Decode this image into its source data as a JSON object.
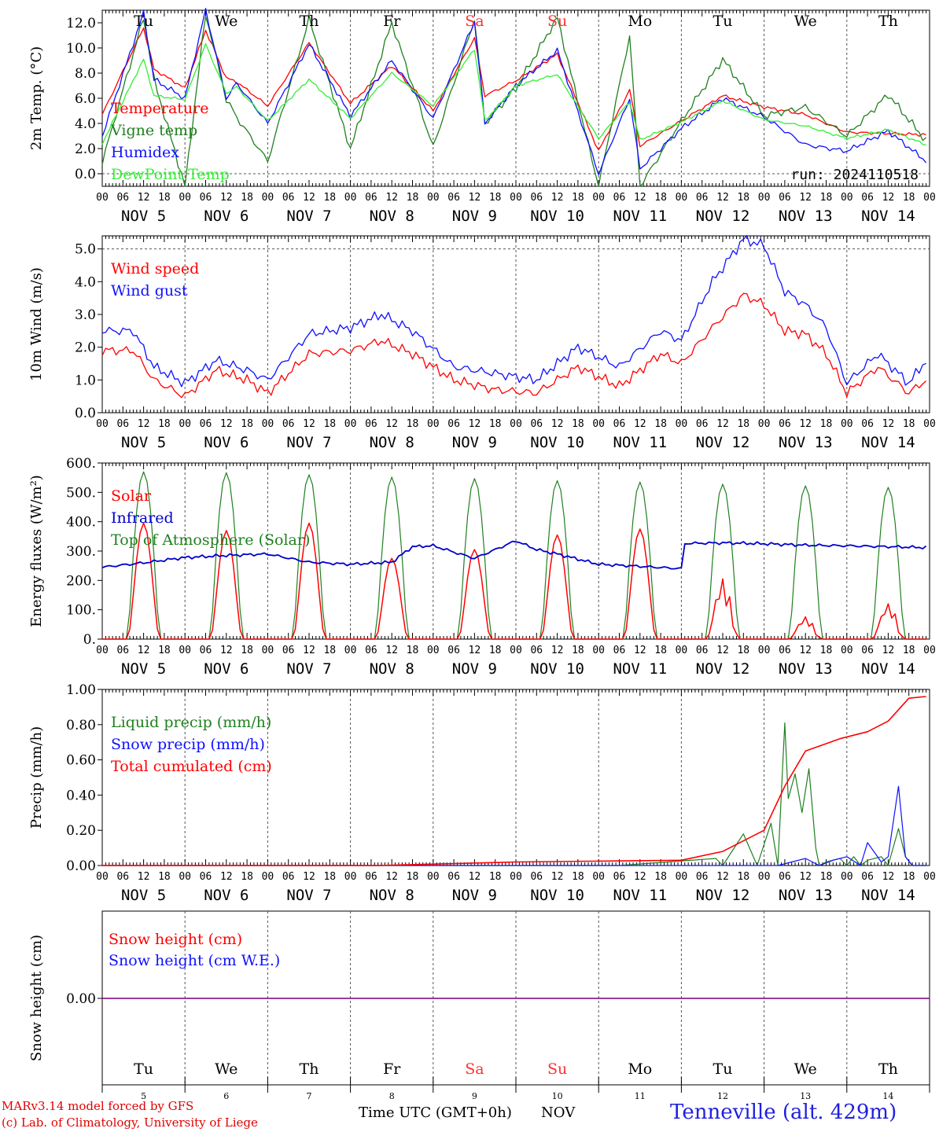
{
  "footer": {
    "model_line": "MARv3.14 model forced by GFS",
    "credit_line": "(c) Lab. of Climatology, University of Liege",
    "xlabel": "Time UTC (GMT+0h)",
    "month": "NOV",
    "station": "Tenneville (alt. 429m)"
  },
  "chart_data": [
    {
      "type": "line",
      "ylabel": "2m Temp. (°C)",
      "ylim": [
        -1.0,
        13.0
      ],
      "yticks": [
        0.0,
        2.0,
        4.0,
        6.0,
        8.0,
        10.0,
        12.0
      ],
      "ytick_labels": [
        "0.0",
        "2.0",
        "4.0",
        "6.0",
        "8.0",
        "10.0",
        "12.0"
      ],
      "reference_line": 0,
      "day_names": [
        "Tu",
        "We",
        "Th",
        "Fr",
        "Sa",
        "Su",
        "Mo",
        "Tu",
        "We",
        "Th"
      ],
      "weekend_color": "#ff3030",
      "annotation": "run: 2024110518",
      "legend": [
        "Temperature",
        "Vigne temp",
        "Humidex",
        "DewPoint Temp"
      ],
      "x_hours": [
        0,
        12,
        15,
        24,
        30,
        36,
        39,
        48,
        60,
        72,
        84,
        96,
        108,
        111,
        120,
        132,
        144,
        153,
        156,
        168,
        180,
        192,
        204,
        216,
        228,
        239
      ],
      "series": [
        {
          "name": "Temperature",
          "color": "#ff0000",
          "values": [
            4.7,
            11.6,
            8.3,
            6.8,
            11.4,
            7.6,
            7.3,
            5.4,
            10.4,
            5.6,
            8.6,
            5.0,
            10.8,
            6.2,
            7.4,
            9.5,
            1.8,
            6.7,
            2.2,
            4.2,
            6.2,
            5.3,
            4.7,
            3.3,
            3.2,
            3.1
          ]
        },
        {
          "name": "Vigne temp",
          "color": "#208020",
          "values": [
            0.9,
            12.4,
            7.5,
            -1.0,
            12.7,
            5.9,
            4.5,
            1.0,
            12.3,
            2.0,
            12.0,
            2.1,
            12.3,
            4.0,
            6.8,
            12.4,
            -1.0,
            11.0,
            -1.0,
            4.2,
            9.1,
            4.6,
            5.3,
            3.0,
            6.3,
            2.6
          ]
        },
        {
          "name": "Humidex",
          "color": "#1010ff",
          "values": [
            3.0,
            12.8,
            7.5,
            6.0,
            13.0,
            6.0,
            7.2,
            4.0,
            10.3,
            4.6,
            9.0,
            4.4,
            12.1,
            4.0,
            7.0,
            9.8,
            0.0,
            6.0,
            0.4,
            3.6,
            6.0,
            4.5,
            2.3,
            1.8,
            3.4,
            1.0
          ]
        },
        {
          "name": "DewPoint Temp",
          "color": "#33ee33",
          "values": [
            2.4,
            9.1,
            6.2,
            5.9,
            10.3,
            6.4,
            6.9,
            4.2,
            7.5,
            4.4,
            8.0,
            5.4,
            9.9,
            4.2,
            7.0,
            7.9,
            2.8,
            5.7,
            2.7,
            4.1,
            5.8,
            4.3,
            3.8,
            2.8,
            3.5,
            2.3
          ]
        }
      ]
    },
    {
      "type": "line",
      "ylabel": "10m Wind (m/s)",
      "ylim": [
        0.0,
        5.4
      ],
      "yticks": [
        0.0,
        1.0,
        2.0,
        3.0,
        4.0,
        5.0
      ],
      "ytick_labels": [
        "0.0",
        "1.0",
        "2.0",
        "3.0",
        "4.0",
        "5.0"
      ],
      "reference_line": 5,
      "legend": [
        "Wind speed",
        "Wind gust"
      ],
      "x_hours": [
        0,
        9,
        15,
        24,
        33,
        42,
        48,
        60,
        72,
        81,
        90,
        102,
        114,
        126,
        138,
        150,
        162,
        168,
        177,
        186,
        192,
        198,
        204,
        210,
        216,
        225,
        234,
        239
      ],
      "series": [
        {
          "name": "Wind speed",
          "color": "#ff0000",
          "values": [
            1.9,
            1.9,
            1.0,
            0.5,
            1.3,
            1.0,
            0.6,
            1.8,
            1.9,
            2.2,
            1.8,
            1.0,
            0.7,
            0.6,
            1.4,
            0.8,
            1.8,
            1.5,
            2.6,
            3.6,
            3.3,
            2.5,
            2.4,
            1.8,
            0.6,
            1.4,
            0.6,
            1.0
          ]
        },
        {
          "name": "Wind gust",
          "color": "#1010ff",
          "values": [
            2.5,
            2.5,
            1.4,
            0.9,
            1.6,
            1.3,
            1.0,
            2.4,
            2.6,
            3.0,
            2.5,
            1.4,
            1.2,
            1.0,
            2.0,
            1.4,
            2.5,
            2.2,
            4.0,
            5.3,
            5.1,
            3.7,
            3.3,
            2.6,
            0.9,
            1.8,
            0.9,
            1.6
          ]
        }
      ]
    },
    {
      "type": "line",
      "ylabel": "Energy fluxes (W/m²)",
      "ylim": [
        0,
        600
      ],
      "yticks": [
        0,
        100,
        200,
        300,
        400,
        500,
        600
      ],
      "ytick_labels": [
        "0.",
        "100.",
        "200.",
        "300.",
        "400.",
        "500.",
        "600."
      ],
      "legend": [
        "Solar",
        "Infrared",
        "Top of Atmosphere (Solar)"
      ],
      "toa_peaks": [
        570,
        567,
        560,
        552,
        547,
        540,
        535,
        528,
        522,
        517
      ],
      "solar_peaks": [
        395,
        370,
        395,
        275,
        305,
        355,
        375,
        210,
        78,
        125
      ],
      "infrared_hours": [
        0,
        12,
        24,
        36,
        48,
        60,
        72,
        84,
        90,
        96,
        108,
        120,
        126,
        132,
        144,
        156,
        168,
        169,
        180,
        192,
        204,
        216,
        228,
        239
      ],
      "infrared_values": [
        245,
        260,
        278,
        285,
        290,
        262,
        255,
        262,
        315,
        318,
        275,
        335,
        305,
        290,
        255,
        248,
        240,
        326,
        328,
        325,
        320,
        318,
        315,
        312
      ],
      "series": [
        {
          "name": "Solar",
          "color": "#ff0000"
        },
        {
          "name": "Infrared",
          "color": "#0000cc"
        },
        {
          "name": "Top of Atmosphere (Solar)",
          "color": "#208020"
        }
      ]
    },
    {
      "type": "line",
      "ylabel": "Precip (mm/h)",
      "ylim": [
        0.0,
        1.0
      ],
      "yticks": [
        0.0,
        0.2,
        0.4,
        0.6,
        0.8,
        1.0
      ],
      "ytick_labels": [
        "0.00",
        "0.20",
        "0.40",
        "0.60",
        "0.80",
        "1.00"
      ],
      "legend": [
        "Liquid precip (mm/h)",
        "Snow precip (mm/h)",
        "Total cumulated (cm)"
      ],
      "series": [
        {
          "name": "Liquid precip (mm/h)",
          "color": "#208020",
          "x_hours": [
            0,
            150,
            178,
            180,
            186,
            190,
            194,
            196,
            198,
            199,
            201,
            203,
            205,
            207,
            208,
            210,
            214,
            216,
            218,
            220,
            222,
            226,
            228,
            231,
            233,
            235,
            239
          ],
          "values": [
            0.0,
            0.0,
            0.04,
            0.0,
            0.18,
            0.0,
            0.24,
            0.0,
            0.81,
            0.38,
            0.52,
            0.3,
            0.55,
            0.1,
            0.0,
            0.02,
            0.04,
            0.0,
            0.05,
            0.0,
            0.03,
            0.05,
            0.0,
            0.21,
            0.05,
            0.0,
            0.0
          ]
        },
        {
          "name": "Snow precip (mm/h)",
          "color": "#1010ff",
          "x_hours": [
            0,
            196,
            200,
            204,
            208,
            212,
            216,
            220,
            222,
            226,
            228,
            231,
            233,
            235,
            239
          ],
          "values": [
            0.0,
            0.0,
            0.02,
            0.04,
            0.0,
            0.03,
            0.05,
            0.0,
            0.13,
            0.02,
            0.05,
            0.45,
            0.05,
            0.0,
            0.0
          ]
        },
        {
          "name": "Total cumulated (cm)",
          "color": "#ff0000",
          "x_hours": [
            0,
            80,
            120,
            168,
            180,
            192,
            198,
            204,
            214,
            222,
            228,
            234,
            239
          ],
          "values": [
            0.0,
            0.0,
            0.02,
            0.03,
            0.08,
            0.2,
            0.45,
            0.65,
            0.72,
            0.76,
            0.82,
            0.95,
            0.96
          ]
        }
      ]
    },
    {
      "type": "line",
      "ylabel": "Snow height (cm)",
      "yticks": [
        0.0
      ],
      "ytick_labels": [
        "0.00"
      ],
      "legend": [
        "Snow height (cm)",
        "Snow height (cm W.E.)"
      ],
      "day_names": [
        "Tu",
        "We",
        "Th",
        "Fr",
        "Sa",
        "Su",
        "Mo",
        "Tu",
        "We",
        "Th"
      ],
      "day_numbers": [
        "5",
        "6",
        "7",
        "8",
        "9",
        "10",
        "11",
        "12",
        "13",
        "14"
      ],
      "series": [
        {
          "name": "Snow height (cm)",
          "color": "#ff0000",
          "values": [
            0.0,
            0.0
          ]
        },
        {
          "name": "Snow height (cm W.E.)",
          "color": "#1010ff",
          "values": [
            0.0,
            0.0
          ]
        }
      ]
    }
  ],
  "x_axis": {
    "hour_labels": [
      "00",
      "06",
      "12",
      "18"
    ],
    "end_label": "00",
    "date_labels": [
      "NOV  5",
      "NOV  6",
      "NOV  7",
      "NOV  8",
      "NOV  9",
      "NOV 10",
      "NOV 11",
      "NOV 12",
      "NOV 13",
      "NOV 14"
    ]
  }
}
